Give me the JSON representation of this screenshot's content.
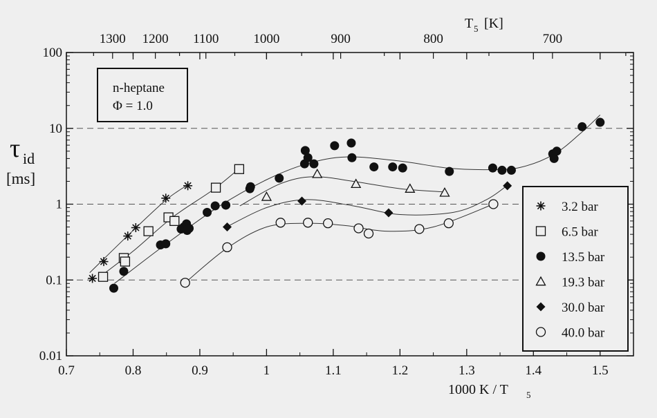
{
  "chart_data": {
    "type": "scatter",
    "xlabel": "1000 K / T",
    "xlabel_sub": "5",
    "xlim": [
      0.7,
      1.55
    ],
    "x_ticks": [
      "0.7",
      "0.8",
      "0.9",
      "1",
      "1.1",
      "1.2",
      "1.3",
      "1.4",
      "1.5"
    ],
    "ylabel": {
      "symbol": "τ",
      "sub": "id",
      "unit": "[ms]"
    },
    "y_scale": "log",
    "ylim": [
      0.01,
      100
    ],
    "y_ticks": [
      "0.01",
      "0.1",
      "1",
      "10",
      "100"
    ],
    "top_axis": {
      "label": "T",
      "label_sub": "5",
      "label_unit": "[K]",
      "ticks": [
        "1300",
        "1200",
        "1100",
        "1000",
        "900",
        "800",
        "700"
      ]
    },
    "dashed_gridlines_y": [
      0.1,
      1,
      10
    ],
    "annotation": {
      "line1": "n-heptane",
      "line2": "Φ  = 1.0"
    },
    "legend_position": "right",
    "series": [
      {
        "name": "3.2 bar",
        "marker": "asterisk",
        "points": [
          [
            0.739,
            0.105
          ],
          [
            0.756,
            0.175
          ],
          [
            0.792,
            0.38
          ],
          [
            0.804,
            0.49
          ],
          [
            0.849,
            1.2
          ],
          [
            0.882,
            1.75
          ]
        ],
        "fit": [
          [
            0.735,
            0.125
          ],
          [
            0.8,
            0.45
          ],
          [
            0.85,
            1.15
          ],
          [
            0.882,
            1.8
          ]
        ]
      },
      {
        "name": "6.5 bar",
        "marker": "open-square",
        "points": [
          [
            0.755,
            0.11
          ],
          [
            0.786,
            0.195
          ],
          [
            0.788,
            0.175
          ],
          [
            0.823,
            0.44
          ],
          [
            0.853,
            0.67
          ],
          [
            0.862,
            0.6
          ],
          [
            0.924,
            1.65
          ],
          [
            0.959,
            2.9
          ]
        ],
        "fit": [
          [
            0.75,
            0.11
          ],
          [
            0.8,
            0.24
          ],
          [
            0.86,
            0.68
          ],
          [
            0.92,
            1.55
          ],
          [
            0.96,
            3.0
          ]
        ]
      },
      {
        "name": "13.5 bar",
        "marker": "filled-circle",
        "points": [
          [
            0.771,
            0.078
          ],
          [
            0.786,
            0.13
          ],
          [
            0.841,
            0.29
          ],
          [
            0.849,
            0.3
          ],
          [
            0.872,
            0.47
          ],
          [
            0.876,
            0.5
          ],
          [
            0.88,
            0.55
          ],
          [
            0.881,
            0.45
          ],
          [
            0.884,
            0.48
          ],
          [
            0.911,
            0.78
          ],
          [
            0.923,
            0.95
          ],
          [
            0.939,
            0.97
          ],
          [
            0.975,
            1.6
          ],
          [
            0.976,
            1.7
          ],
          [
            1.019,
            2.2
          ],
          [
            1.057,
            3.4
          ],
          [
            1.058,
            5.1
          ],
          [
            1.062,
            4.1
          ],
          [
            1.071,
            3.4
          ],
          [
            1.102,
            5.9
          ],
          [
            1.127,
            6.4
          ],
          [
            1.128,
            4.1
          ],
          [
            1.161,
            3.1
          ],
          [
            1.189,
            3.1
          ],
          [
            1.204,
            3.0
          ],
          [
            1.274,
            2.7
          ],
          [
            1.339,
            3.0
          ],
          [
            1.353,
            2.8
          ],
          [
            1.367,
            2.8
          ],
          [
            1.429,
            4.6
          ],
          [
            1.431,
            4.0
          ],
          [
            1.435,
            5.0
          ],
          [
            1.473,
            10.5
          ],
          [
            1.5,
            12.0
          ]
        ],
        "fit": [
          [
            0.772,
            0.09
          ],
          [
            0.85,
            0.3
          ],
          [
            0.93,
            0.95
          ],
          [
            1.0,
            2.1
          ],
          [
            1.06,
            3.4
          ],
          [
            1.12,
            4.2
          ],
          [
            1.2,
            3.7
          ],
          [
            1.27,
            3.0
          ],
          [
            1.33,
            2.85
          ],
          [
            1.38,
            3.05
          ],
          [
            1.43,
            4.5
          ],
          [
            1.47,
            8.5
          ],
          [
            1.5,
            15.0
          ]
        ]
      },
      {
        "name": "19.3 bar",
        "marker": "open-triangle",
        "points": [
          [
            1.0,
            1.25
          ],
          [
            1.076,
            2.5
          ],
          [
            1.134,
            1.85
          ],
          [
            1.215,
            1.6
          ],
          [
            1.267,
            1.42
          ]
        ],
        "fit": [
          [
            0.96,
            0.95
          ],
          [
            1.02,
            1.85
          ],
          [
            1.07,
            2.3
          ],
          [
            1.13,
            2.0
          ],
          [
            1.2,
            1.6
          ],
          [
            1.265,
            1.45
          ]
        ]
      },
      {
        "name": "30.0 bar",
        "marker": "filled-diamond",
        "points": [
          [
            0.941,
            0.5
          ],
          [
            1.053,
            1.1
          ],
          [
            1.183,
            0.77
          ],
          [
            1.361,
            1.75
          ]
        ],
        "fit": [
          [
            0.94,
            0.5
          ],
          [
            1.0,
            0.9
          ],
          [
            1.06,
            1.15
          ],
          [
            1.13,
            0.95
          ],
          [
            1.2,
            0.73
          ],
          [
            1.28,
            0.78
          ],
          [
            1.33,
            1.15
          ],
          [
            1.362,
            1.8
          ]
        ]
      },
      {
        "name": "40.0 bar",
        "marker": "open-circle",
        "points": [
          [
            0.878,
            0.092
          ],
          [
            0.941,
            0.27
          ],
          [
            1.021,
            0.57
          ],
          [
            1.062,
            0.57
          ],
          [
            1.092,
            0.56
          ],
          [
            1.138,
            0.48
          ],
          [
            1.153,
            0.41
          ],
          [
            1.229,
            0.47
          ],
          [
            1.273,
            0.56
          ],
          [
            1.34,
            1.0
          ]
        ],
        "fit": [
          [
            0.878,
            0.092
          ],
          [
            0.94,
            0.26
          ],
          [
            1.0,
            0.5
          ],
          [
            1.06,
            0.56
          ],
          [
            1.12,
            0.52
          ],
          [
            1.18,
            0.44
          ],
          [
            1.25,
            0.5
          ],
          [
            1.34,
            1.0
          ]
        ]
      }
    ]
  }
}
